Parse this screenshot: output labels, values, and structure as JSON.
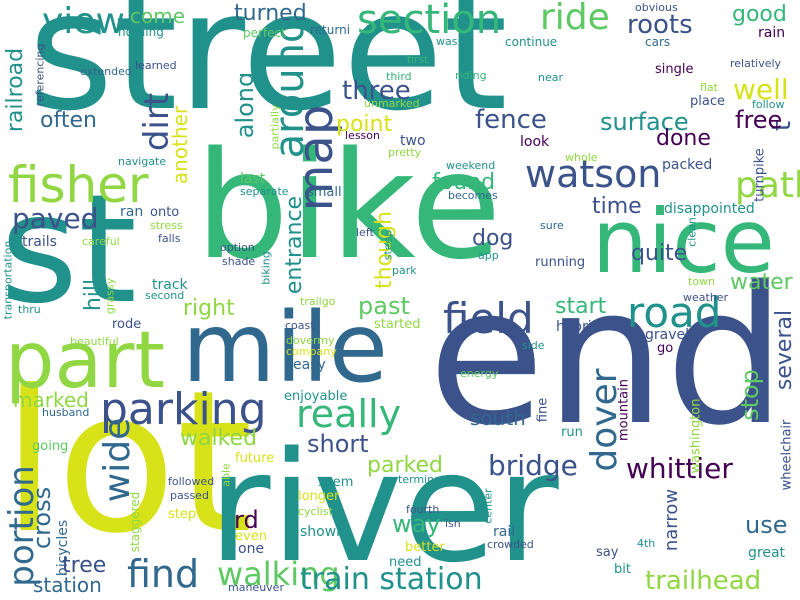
{
  "palette": {
    "dark_indigo": "#440154",
    "indigo": "#3b528b",
    "blue": "#31688e",
    "teal": "#21918c",
    "green": "#35b779",
    "lime": "#5ec962",
    "light_green": "#90d743",
    "yellow": "#d8e219",
    "bright_yellow": "#fde725"
  },
  "words": {
    "street": "street",
    "st": "st",
    "bike": "bike",
    "end": "end",
    "lot": "lot",
    "river": "river",
    "mile": "mile",
    "nice": "nice",
    "part": "part",
    "fisher": "fisher",
    "parking": "parking",
    "section": "section",
    "ride": "ride",
    "map": "map",
    "around": "around",
    "dirt": "dirt",
    "watson": "watson",
    "path": "path",
    "road": "road",
    "field": "field",
    "really": "really",
    "portion": "portion",
    "wide": "wide",
    "find": "find",
    "walking": "walking",
    "train_station": "train station",
    "trailhead": "trailhead",
    "dover": "dover",
    "bridge": "bridge",
    "whittier": "whittier",
    "view": "view",
    "come": "come",
    "turned": "turned",
    "roots": "roots",
    "good": "good",
    "three": "three",
    "well": "well",
    "fence": "fence",
    "surface": "surface",
    "free": "free",
    "railroad": "railroad",
    "along": "along",
    "point": "point",
    "paved": "paved",
    "found": "found",
    "time": "time",
    "quite": "quite",
    "water": "water",
    "right": "right",
    "past": "past",
    "entrance": "entrance",
    "though": "though",
    "dog": "dog",
    "short": "short",
    "walked": "walked",
    "parked": "parked",
    "way": "way",
    "cross": "cross",
    "station": "station",
    "tree": "tree",
    "use": "use",
    "stop": "stop",
    "several": "several",
    "south": "south",
    "start": "start",
    "often": "often",
    "hill": "hill",
    "marked": "marked",
    "another": "another",
    "done": "done",
    "rd": "rd",
    "t": "t",
    "nothing": "nothing",
    "perfect": "perfect",
    "returni": "returni",
    "obvious": "obvious",
    "rain": "rain",
    "cars": "cars",
    "continue": "continue",
    "relatively": "relatively",
    "extended": "extended",
    "learned": "learned",
    "first": "first",
    "wasn": "wasn",
    "near": "near",
    "single": "single",
    "flat": "flat",
    "place": "place",
    "follow": "follow",
    "riding": "riding",
    "third": "third",
    "referencing": "referencing",
    "partially": "partially",
    "unmarked": "unmarked",
    "lesson": "lesson",
    "two": "two",
    "look": "look",
    "pretty": "pretty",
    "whole": "whole",
    "packed": "packed",
    "turnpike": "turnpike",
    "disappointed": "disappointed",
    "navigate": "navigate",
    "last": "last",
    "separate": "separate",
    "small": "small",
    "weekend": "weekend",
    "becomes": "becomes",
    "onto": "onto",
    "ran": "ran",
    "stress": "stress",
    "falls": "falls",
    "option": "option",
    "shade": "shade",
    "left": "left",
    "steep": "steep",
    "sure": "sure",
    "app": "app",
    "clean": "clean",
    "running": "running",
    "trails": "trails",
    "careful": "careful",
    "biking": "biking",
    "park": "park",
    "town": "town",
    "transportation": "transportation",
    "track": "track",
    "second": "second",
    "grassy": "grassy",
    "trailgo": "trailgo",
    "weather": "weather",
    "thru": "thru",
    "hybrid": "hybrid",
    "gravel": "gravel",
    "rode": "rode",
    "coast": "coast",
    "started": "started",
    "go": "go",
    "beautiful": "beautiful",
    "dovermy": "dovermy",
    "company": "company",
    "side": "side",
    "easy": "easy",
    "energy": "energy",
    "enjoyable": "enjoyable",
    "husband": "husband",
    "fine": "fine",
    "run": "run",
    "mountain": "mountain",
    "washington": "washington",
    "wheelchair": "wheelchair",
    "going": "going",
    "future": "future",
    "seem": "seem",
    "terminated": "terminated",
    "followed": "followed",
    "able": "able",
    "longer": "longer",
    "cyclist": "cyclist",
    "bicycles": "bicycles",
    "passed": "passed",
    "step": "step",
    "staggered": "staggered",
    "even": "even",
    "shown": "shown",
    "fourth": "fourth",
    "isn": "isn",
    "center": "center",
    "better": "better",
    "rail": "rail",
    "crowded": "crowded",
    "say": "say",
    "4th": "4th",
    "narrow": "narrow",
    "great": "great",
    "one": "one",
    "need": "need",
    "bit": "bit",
    "maneuver": "maneuver"
  }
}
